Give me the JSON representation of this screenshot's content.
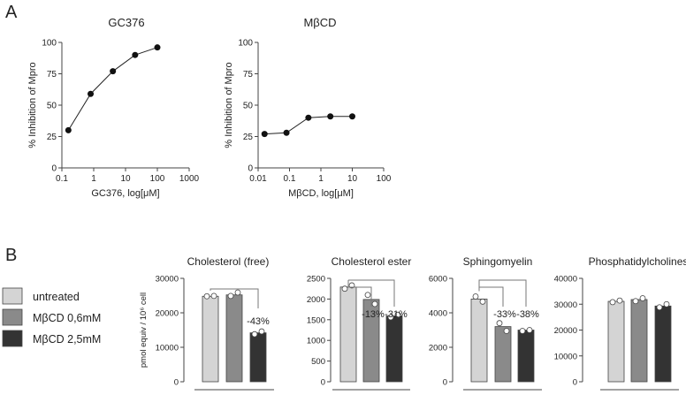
{
  "panel_labels": {
    "a": "A",
    "b": "B"
  },
  "legend": [
    {
      "label": "untreated",
      "color": "#d4d4d4"
    },
    {
      "label": "MβCD 0,6mM",
      "color": "#8a8a8a"
    },
    {
      "label": "MβCD 2,5mM",
      "color": "#333333"
    }
  ],
  "chart_data": [
    {
      "type": "line",
      "title": "GC376",
      "xlabel": "GC376, log[μM]",
      "ylabel": "% Inhibition of Mpro",
      "xscale": "log",
      "xlim": [
        0.1,
        1000
      ],
      "xticks": [
        "0.1",
        "1",
        "10",
        "100",
        "1000"
      ],
      "ylim": [
        0,
        100
      ],
      "yticks": [
        "0",
        "25",
        "50",
        "75",
        "100"
      ],
      "x": [
        0.16,
        0.8,
        4,
        20,
        100
      ],
      "y": [
        30,
        59,
        77,
        90,
        96
      ]
    },
    {
      "type": "line",
      "title": "MβCD",
      "xlabel": "MβCD, log[μM]",
      "ylabel": "% Inhibition of Mpro",
      "xscale": "log",
      "xlim": [
        0.01,
        100
      ],
      "xticks": [
        "0.01",
        "0.1",
        "1",
        "10",
        "100"
      ],
      "ylim": [
        0,
        100
      ],
      "yticks": [
        "0",
        "25",
        "50",
        "75",
        "100"
      ],
      "x": [
        0.016,
        0.08,
        0.4,
        2,
        10
      ],
      "y": [
        27,
        28,
        40,
        41,
        41
      ]
    },
    {
      "type": "bar",
      "title": "Cholesterol (free)",
      "ylabel": "pmol equiv / 10⁶ cell",
      "ylim": [
        0,
        30000
      ],
      "yticks": [
        "0",
        "10000",
        "20000",
        "30000"
      ],
      "categories": [
        "untreated",
        "MβCD 0,6mM",
        "MβCD 2,5mM"
      ],
      "values": [
        24800,
        25200,
        14200
      ],
      "points": [
        [
          24800,
          24900
        ],
        [
          24900,
          25900
        ],
        [
          13800,
          14600
        ]
      ],
      "comparisons": [
        {
          "from": 0,
          "to": 2,
          "label": "-43%"
        }
      ]
    },
    {
      "type": "bar",
      "title": "Cholesterol ester",
      "ylim": [
        0,
        2500
      ],
      "yticks": [
        "0",
        "500",
        "1000",
        "1500",
        "2000",
        "2500"
      ],
      "categories": [
        "untreated",
        "MβCD 0,6mM",
        "MβCD 2,5mM"
      ],
      "values": [
        2290,
        1990,
        1590
      ],
      "points": [
        [
          2250,
          2330
        ],
        [
          2100,
          1880
        ],
        [
          1560,
          1620
        ]
      ],
      "comparisons": [
        {
          "from": 0,
          "to": 1,
          "label": "-13%"
        },
        {
          "from": 0,
          "to": 2,
          "label": "-31%"
        }
      ]
    },
    {
      "type": "bar",
      "title": "Sphingomyelin",
      "ylim": [
        0,
        6000
      ],
      "yticks": [
        "0",
        "2000",
        "4000",
        "6000"
      ],
      "categories": [
        "untreated",
        "MβCD 0,6mM",
        "MβCD 2,5mM"
      ],
      "values": [
        4800,
        3200,
        3000
      ],
      "points": [
        [
          4950,
          4650
        ],
        [
          3400,
          2950
        ],
        [
          2950,
          3000
        ]
      ],
      "comparisons": [
        {
          "from": 0,
          "to": 1,
          "label": "-33%"
        },
        {
          "from": 0,
          "to": 2,
          "label": "-38%"
        }
      ]
    },
    {
      "type": "bar",
      "title": "Phosphatidylcholines",
      "ylim": [
        0,
        40000
      ],
      "yticks": [
        "0",
        "10000",
        "20000",
        "30000",
        "40000"
      ],
      "categories": [
        "untreated",
        "MβCD 0,6mM",
        "MβCD 2,5mM"
      ],
      "values": [
        31100,
        31800,
        29300
      ],
      "points": [
        [
          30800,
          31400
        ],
        [
          31200,
          32300
        ],
        [
          28800,
          30000
        ]
      ],
      "comparisons": []
    }
  ]
}
